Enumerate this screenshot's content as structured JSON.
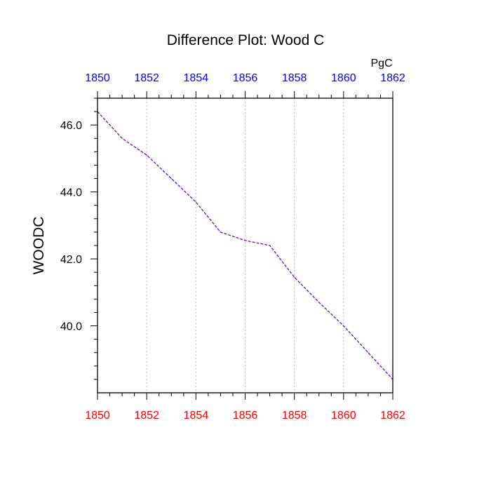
{
  "chart_data": {
    "type": "line",
    "title": "Difference Plot: Wood C",
    "units": "PgC",
    "ylabel": "WOODC",
    "xlabel": "",
    "xlim": [
      1850,
      1862
    ],
    "ylim": [
      38.0,
      46.8
    ],
    "x_ticks": [
      1850,
      1852,
      1854,
      1856,
      1858,
      1860,
      1862
    ],
    "y_ticks": [
      "40.0",
      "42.0",
      "44.0",
      "46.0"
    ],
    "grid": "vertical dotted",
    "series": [
      {
        "line_style": "dashed",
        "color": "#7a00cc",
        "x": [
          1850,
          1851,
          1852,
          1853,
          1854,
          1855,
          1856,
          1857,
          1858,
          1859,
          1860,
          1861,
          1862
        ],
        "values": [
          46.4,
          45.6,
          45.1,
          44.4,
          43.7,
          42.8,
          42.55,
          42.4,
          41.45,
          40.7,
          40.0,
          39.2,
          38.4
        ]
      }
    ]
  },
  "colors": {
    "bottom_axis_labels": "#ff0000",
    "top_axis_labels": "#0000ff",
    "text": "#000000",
    "grid": "#bbbbbb"
  }
}
